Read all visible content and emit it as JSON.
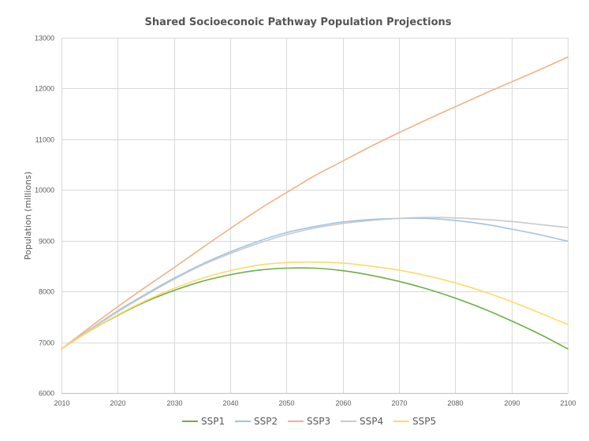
{
  "chart_data": {
    "type": "line",
    "title": "Shared Socioeconoic Pathway Population Projections",
    "xlabel": "",
    "ylabel": "Population (millions)",
    "xlim": [
      2010,
      2100
    ],
    "ylim": [
      6000,
      13000
    ],
    "x_ticks": [
      2010,
      2020,
      2030,
      2040,
      2050,
      2060,
      2070,
      2080,
      2090,
      2100
    ],
    "y_ticks": [
      6000,
      7000,
      8000,
      9000,
      10000,
      11000,
      12000,
      13000
    ],
    "grid": true,
    "legend_position": "bottom",
    "x": [
      2010,
      2015,
      2020,
      2025,
      2030,
      2035,
      2040,
      2045,
      2050,
      2055,
      2060,
      2065,
      2070,
      2075,
      2080,
      2085,
      2090,
      2095,
      2100
    ],
    "series": [
      {
        "name": "SSP1",
        "color": "#70ad47",
        "values": [
          6870,
          7220,
          7530,
          7800,
          8020,
          8200,
          8330,
          8420,
          8460,
          8460,
          8410,
          8320,
          8200,
          8050,
          7870,
          7660,
          7420,
          7160,
          6870
        ]
      },
      {
        "name": "SSP2",
        "color": "#9dc3e6",
        "values": [
          6870,
          7250,
          7620,
          7950,
          8260,
          8540,
          8780,
          8990,
          9160,
          9280,
          9370,
          9420,
          9440,
          9440,
          9400,
          9330,
          9230,
          9120,
          8990
        ]
      },
      {
        "name": "SSP3",
        "color": "#f4b183",
        "values": [
          6870,
          7290,
          7700,
          8090,
          8470,
          8860,
          9240,
          9610,
          9950,
          10280,
          10570,
          10860,
          11130,
          11390,
          11640,
          11890,
          12130,
          12370,
          12620
        ]
      },
      {
        "name": "SSP4",
        "color": "#c9c9c9",
        "values": [
          6870,
          7240,
          7600,
          7930,
          8240,
          8520,
          8750,
          8950,
          9120,
          9250,
          9340,
          9400,
          9440,
          9460,
          9450,
          9420,
          9380,
          9320,
          9260
        ]
      },
      {
        "name": "SSP5",
        "color": "#ffd966",
        "values": [
          6870,
          7220,
          7540,
          7820,
          8060,
          8260,
          8410,
          8520,
          8570,
          8580,
          8560,
          8500,
          8420,
          8310,
          8170,
          8000,
          7800,
          7580,
          7350
        ]
      }
    ]
  }
}
